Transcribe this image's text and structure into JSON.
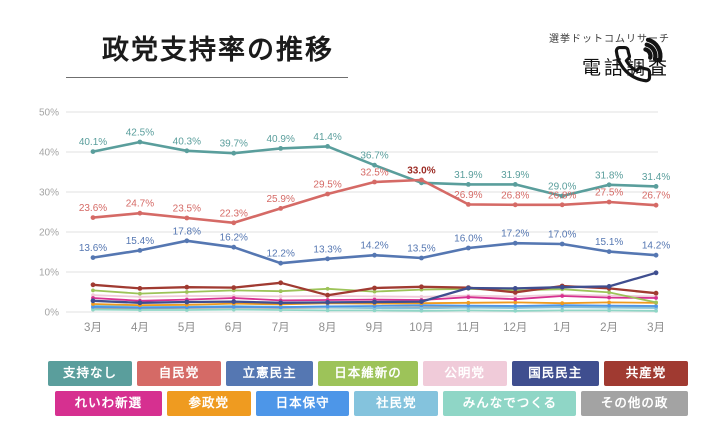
{
  "header": {
    "title": "政党支持率の推移",
    "source_label": "選挙ドットコムリサーチ",
    "method_label": "電話調査",
    "phone_icon": "phone-icon"
  },
  "chart_data": {
    "type": "line",
    "title": "政党支持率の推移",
    "x": [
      "3月",
      "4月",
      "5月",
      "6月",
      "7月",
      "8月",
      "9月",
      "10月",
      "11月",
      "12月",
      "1月",
      "2月",
      "3月"
    ],
    "ylim": [
      0,
      50
    ],
    "yticks": [
      {
        "label": "0%",
        "value": 0
      },
      {
        "label": "10%",
        "value": 10
      },
      {
        "label": "20%",
        "value": 20
      },
      {
        "label": "30%",
        "value": 30
      },
      {
        "label": "40%",
        "value": 40
      },
      {
        "label": "50%",
        "value": 50
      }
    ],
    "grid": true,
    "legend_position": "bottom",
    "emphasis_label_color": "#9c2b24",
    "series": [
      {
        "id": "shiji-nashi",
        "name": "支持なし",
        "color": "#5a9e9c",
        "values": [
          40.1,
          42.5,
          40.3,
          39.7,
          40.9,
          41.4,
          36.7,
          32.3,
          31.9,
          31.9,
          29.0,
          31.8,
          31.4
        ],
        "labels": [
          "40.1%",
          "42.5%",
          "40.3%",
          "39.7%",
          "40.9%",
          "41.4%",
          "36.7%",
          null,
          "31.9%",
          "31.9%",
          "29.0%",
          "31.8%",
          "31.4%"
        ]
      },
      {
        "id": "jiminto",
        "name": "自民党",
        "color": "#d56a66",
        "values": [
          23.6,
          24.7,
          23.5,
          22.3,
          25.9,
          29.5,
          32.5,
          33.0,
          26.9,
          26.8,
          26.8,
          27.5,
          26.7
        ],
        "labels": [
          "23.6%",
          "24.7%",
          "23.5%",
          "22.3%",
          "25.9%",
          "29.5%",
          "32.5%",
          "33.0%",
          "26.9%",
          "26.8%",
          "26.8%",
          "27.5%",
          "26.7%"
        ],
        "emphasis_index": 7
      },
      {
        "id": "rikken-minshuto",
        "name": "立憲民主党",
        "color": "#5577b2",
        "values": [
          13.6,
          15.4,
          17.8,
          16.2,
          12.2,
          13.3,
          14.2,
          13.5,
          16.0,
          17.2,
          17.0,
          15.1,
          14.2
        ],
        "labels": [
          "13.6%",
          "15.4%",
          "17.8%",
          "16.2%",
          "12.2%",
          "13.3%",
          "14.2%",
          "13.5%",
          "16.0%",
          "17.2%",
          "17.0%",
          "15.1%",
          "14.2%"
        ]
      },
      {
        "id": "ishin",
        "name": "日本維新の会",
        "color": "#9dc359",
        "values": [
          5.4,
          4.6,
          5.0,
          5.4,
          5.2,
          5.8,
          5.1,
          5.6,
          5.8,
          5.4,
          5.7,
          4.9,
          2.4
        ]
      },
      {
        "id": "komeito",
        "name": "公明党",
        "color": "#f0cbd9",
        "values": [
          4.2,
          3.8,
          4.0,
          4.0,
          3.9,
          4.0,
          3.9,
          3.8,
          4.1,
          3.9,
          4.3,
          4.1,
          3.9
        ]
      },
      {
        "id": "kokumin-minshuto",
        "name": "国民民主党",
        "color": "#3f4e8f",
        "values": [
          2.8,
          2.3,
          2.5,
          2.6,
          2.3,
          2.4,
          2.5,
          2.6,
          6.0,
          5.9,
          6.2,
          6.4,
          9.8
        ]
      },
      {
        "id": "kyosanto",
        "name": "共産党",
        "color": "#a03a31",
        "values": [
          6.8,
          5.9,
          6.2,
          6.1,
          7.3,
          4.2,
          6.0,
          6.3,
          6.1,
          4.9,
          6.5,
          5.9,
          4.7
        ]
      },
      {
        "id": "reiwa",
        "name": "れいわ新選組",
        "color": "#d63090",
        "values": [
          3.5,
          2.8,
          3.1,
          3.5,
          2.9,
          3.0,
          3.1,
          3.0,
          3.7,
          3.2,
          4.0,
          3.6,
          3.5
        ]
      },
      {
        "id": "sanseito",
        "name": "参政党",
        "color": "#ef9b20",
        "values": [
          2.0,
          1.7,
          1.8,
          2.1,
          1.9,
          2.2,
          2.1,
          2.2,
          2.3,
          2.4,
          2.2,
          2.4,
          2.3
        ]
      },
      {
        "id": "hoshuto",
        "name": "日本保守党",
        "color": "#4d96e8",
        "values": [
          1.3,
          1.1,
          1.2,
          1.3,
          1.2,
          1.4,
          1.5,
          1.7,
          1.6,
          1.5,
          1.7,
          1.6,
          1.5
        ]
      },
      {
        "id": "shaminto",
        "name": "社民党",
        "color": "#84c3dd",
        "values": [
          1.6,
          1.4,
          1.3,
          1.5,
          1.3,
          1.2,
          1.0,
          0.9,
          1.1,
          1.0,
          1.2,
          1.1,
          1.0
        ]
      },
      {
        "id": "minna-tsukuru",
        "name": "みんなでつくる党",
        "color": "#8fd6c6",
        "values": [
          0.6,
          0.5,
          0.5,
          0.6,
          0.5,
          0.4,
          0.4,
          0.3,
          0.4,
          0.3,
          0.4,
          0.4,
          0.3
        ]
      },
      {
        "id": "sonota",
        "name": "その他の政党",
        "color": "#a3a3a3",
        "values": [
          1.0,
          0.9,
          1.0,
          1.1,
          1.0,
          1.1,
          1.0,
          1.2,
          1.3,
          1.2,
          1.3,
          1.4,
          1.2
        ]
      }
    ],
    "legend_rows": [
      [
        "支持なし",
        "自民党",
        "立憲民主党",
        "日本維新の会",
        "公明党",
        "国民民主党",
        "共産党"
      ],
      [
        "れいわ新選組",
        "参政党",
        "日本保守党",
        "社民党",
        "みんなでつくる党",
        "その他の政党"
      ]
    ]
  }
}
